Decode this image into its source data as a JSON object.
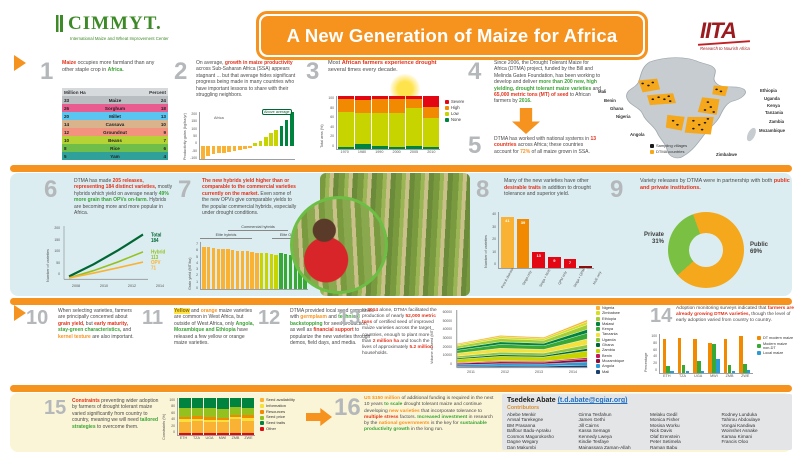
{
  "header": {
    "cimmyt_name": "CIMMYT.",
    "cimmyt_tagline": "International Maize and Wheat Improvement Center",
    "title": "A New Generation of Maize for Africa",
    "iita_name": "IITA",
    "iita_tagline": "Research to Nourish Africa"
  },
  "s1": {
    "num": "1",
    "p1": "Maize",
    "p2": "occupies more farmland than any other staple crop in",
    "p3": "Africa.",
    "table": {
      "type": "table",
      "header": [
        "Million Ha",
        "Percent"
      ],
      "rows": [
        {
          "crop": "Maize",
          "ha": "33",
          "pct": "24",
          "color": "#b9bec2"
        },
        {
          "crop": "Sorghum",
          "ha": "26",
          "pct": "18",
          "color": "#e85c8f"
        },
        {
          "crop": "Millet",
          "ha": "20",
          "pct": "13",
          "color": "#5bc5f2"
        },
        {
          "crop": "Cassava",
          "ha": "14",
          "pct": "10",
          "color": "#d9b38c"
        },
        {
          "crop": "Groundnut",
          "ha": "12",
          "pct": "9",
          "color": "#f2927f"
        },
        {
          "crop": "Beans",
          "ha": "10",
          "pct": "7",
          "color": "#b5d334"
        },
        {
          "crop": "Rice",
          "ha": "8",
          "pct": "6",
          "color": "#6fbe4a"
        },
        {
          "crop": "Yam",
          "ha": "5",
          "pct": "4",
          "color": "#2fa09a"
        }
      ]
    }
  },
  "s2": {
    "num": "2",
    "p1": "On average,",
    "p2": "growth in maize productivity",
    "p3": "across Sub-Saharan Africa (SSA) appears stagnant ... but that average hides significant progress being made in many countries who have important lessons to share with their struggling neighbors.",
    "chart": {
      "type": "bar",
      "ylabel": "Productivity gains (kg/ha/yr)",
      "values": [
        -70,
        -55,
        -45,
        -40,
        -35,
        -30,
        -25,
        -20,
        -15,
        -10,
        15,
        30,
        50,
        70,
        90,
        110,
        140,
        185
      ],
      "neg_color": "#f9b233",
      "pos_color": "#c8d400",
      "top_color": "#00833e",
      "top_count": 3,
      "yticks": [
        "200",
        "150",
        "100",
        "50",
        "0",
        "-50",
        "-100"
      ],
      "anno_africa": "Africa",
      "anno_above": "Above average"
    }
  },
  "s3": {
    "num": "3",
    "p1": "Most",
    "p2": "African farmers experience drought",
    "p3": "several times every decade.",
    "chart": {
      "type": "stacked",
      "max": 100,
      "ylabel": "Total area (%)",
      "categories": [
        "1970",
        "1980",
        "1990",
        "2000",
        "2005",
        "2010"
      ],
      "series": [
        {
          "name": "None",
          "color": "#00833e",
          "values": [
            4,
            10,
            6,
            4,
            6,
            3
          ]
        },
        {
          "name": "Low",
          "color": "#c8d400",
          "values": [
            66,
            58,
            62,
            64,
            72,
            55
          ]
        },
        {
          "name": "High",
          "color": "#f18a00",
          "values": [
            24,
            24,
            26,
            26,
            16,
            22
          ]
        },
        {
          "name": "Severe",
          "color": "#e30613",
          "values": [
            6,
            8,
            6,
            6,
            6,
            20
          ]
        }
      ],
      "legend": [
        {
          "label": "Severe",
          "color": "#e30613"
        },
        {
          "label": "High",
          "color": "#f18a00"
        },
        {
          "label": "Low",
          "color": "#c8d400"
        },
        {
          "label": "None",
          "color": "#00833e"
        }
      ],
      "yticks": [
        "100",
        "80",
        "60",
        "40",
        "20",
        "0"
      ]
    }
  },
  "s4": {
    "num": "4",
    "p1": "Since 2006, the Drought Tolerant Maize for Africa (DTMA) project, funded by the Bill and Melinda Gates Foundation, has been working to develop and deliver",
    "p2": "more than 200 new, high yielding, drought tolerant maize varieties",
    "p3": "and",
    "p4": "65,000 metric tons (MT) of seed",
    "p5": "to African farmers by",
    "p6": "2016."
  },
  "s5": {
    "num": "5",
    "p1": "DTMA has worked with national systems in",
    "p2": "13 countries",
    "p3": "across Africa; these countries account for",
    "p4": "72%",
    "p5": "of all maize grown in SSA."
  },
  "map": {
    "labels": [
      "Mali",
      "Benin",
      "Ghana",
      "Nigeria",
      "Angola",
      "Ethiopia",
      "Uganda",
      "Kenya",
      "Tanzania",
      "Zambia",
      "Mozambique",
      "Zimbabwe"
    ],
    "legend": [
      {
        "label": "Sampling villages",
        "color": "#1a1a1a"
      },
      {
        "label": "DTMA countries",
        "color": "#f5a81c"
      }
    ]
  },
  "s6": {
    "num": "6",
    "p1": "DTMA has made",
    "p2": "205 releases, representing 184 distinct varieties,",
    "p3": "mostly hybrids which yield on average nearly",
    "p4": "49% more grain than OPVs on-farm.",
    "p5": "Hybrids are becoming more and more popular in Africa.",
    "chart": {
      "type": "line",
      "ymax": 200,
      "ylabel": "Number of varieties",
      "x": [
        "2008",
        "2010",
        "2012",
        "2014"
      ],
      "yticks": [
        "200",
        "150",
        "100",
        "50",
        "0"
      ],
      "series": [
        {
          "name": "Total",
          "end": "184",
          "color": "#006633",
          "values": [
            12,
            62,
            120,
            184
          ]
        },
        {
          "name": "Hybrid",
          "end": "113",
          "color": "#95c11f",
          "values": [
            6,
            36,
            72,
            113
          ]
        },
        {
          "name": "OPV",
          "end": "71",
          "color": "#f9b233",
          "values": [
            6,
            26,
            48,
            71
          ]
        }
      ]
    }
  },
  "s7": {
    "num": "7",
    "p1": "The new hybrids yield higher than or comparable to the commercial varieties currently on the market.",
    "p2": "Even some of the new OPVs give comparable yields to the popular commercial hybrids, especially under drought conditions.",
    "chart": {
      "type": "bar",
      "max": 7,
      "ylabel": "Grain yield (MT/ha)",
      "values": [
        6.3,
        6.2,
        6.1,
        6.0,
        5.9,
        5.9,
        5.8,
        5.7,
        5.7,
        5.6,
        5.5,
        5.4,
        5.4,
        5.3,
        5.2,
        5.1,
        5.3,
        5.2,
        5.1,
        4.9,
        4.8,
        4.6
      ],
      "bar_colors": [
        "#f9b233",
        "#f9b233",
        "#f9b233",
        "#f9b233",
        "#f9b233",
        "#f9b233",
        "#f9b233",
        "#f9b233",
        "#f9b233",
        "#f9b233",
        "#f9b233",
        "#f9b233",
        "#c8d400",
        "#c8d400",
        "#c8d400",
        "#c8d400",
        "#39a935",
        "#39a935",
        "#39a935",
        "#39a935",
        "#39a935",
        "#39a935"
      ],
      "group_labels": [
        "Elite hybrids",
        "Commercial hybrids",
        "Elite OPVs"
      ],
      "yticks": [
        "7",
        "6",
        "5",
        "4",
        "3",
        "2",
        "1",
        "0"
      ]
    }
  },
  "s8": {
    "num": "8",
    "p1": "Many of the new varieties have other",
    "p2": "desirable traits",
    "p3": "in addition to drought tolerance and superior yield.",
    "chart": {
      "type": "bar",
      "max": 45,
      "ylabel": "Number of varieties",
      "show_values": true,
      "rotate": true,
      "values": [
        41,
        39,
        13,
        9,
        7,
        2
      ],
      "bar_colors": [
        "#f9b233",
        "#f18a00",
        "#e30613",
        "#e30613",
        "#e30613",
        "#8b0e0e"
      ],
      "categories": [
        "Pest & disease",
        "Striga only",
        "Striga + NUE",
        "QPM only",
        "Striga + QPM",
        "NUE only"
      ],
      "yticks": [
        "40",
        "30",
        "20",
        "10",
        "0"
      ]
    }
  },
  "s9": {
    "num": "9",
    "p1": "Variety releases by DTMA were in partnership with both",
    "p2": "public and private institutions.",
    "chart": {
      "type": "donut",
      "from": -20,
      "slices": [
        {
          "label": "Public",
          "pct": 69,
          "color": "#f5a81c"
        },
        {
          "label": "Private",
          "pct": 31,
          "color": "#7ac143"
        }
      ]
    },
    "private_label": "Private",
    "private_pct": "31%",
    "public_label": "Public",
    "public_pct": "69%"
  },
  "s10": {
    "num": "10",
    "p1": "When selecting varieties, farmers are principally concerned about",
    "p2": "grain yield,",
    "p3": "but",
    "p4": "early maturity,",
    "p5": "stay-green characteristics,",
    "p6": "and",
    "p7": "kernel texture",
    "p8": "are also important."
  },
  "s11": {
    "num": "11",
    "p1": "Yellow",
    "p2": "and",
    "p3": "orange",
    "p4": "maize varieties are common in West Africa, but outside of West Africa, only",
    "p5": "Angola, Mozambique and Ethiopia",
    "p6": "have released a few yellow or orange maize varieties."
  },
  "s12": {
    "num": "12",
    "p1": "DTMA provided local seed companies with",
    "p2": "germplasm",
    "p3": "and",
    "p4": "technical backstopping",
    "p5": "for seed production, as well as",
    "p6": "financial support",
    "p7": "to popularize the new varieties through demos, field days, and media."
  },
  "s13": {
    "num": "13",
    "p1": "In",
    "p2": "2014",
    "p3": "alone, DTMA facilitated the production of nearly",
    "p4": "52,000 metric tons",
    "p5": "of certified seed of improved maize varieties across the target countries, enough to plant more than",
    "p6": "2 million ha",
    "p7": "and touch the lives of approximately",
    "p8": "5.2 million",
    "p9": "households.",
    "chart": {
      "type": "area",
      "ymax": 60000,
      "ylabel": "Volume of seed (MT)",
      "x": [
        "2011",
        "2012",
        "2013",
        "2014"
      ],
      "yticks": [
        "60000",
        "50000",
        "40000",
        "30000",
        "20000",
        "10000",
        "0"
      ],
      "totals": [
        26000,
        35000,
        33000,
        52000
      ],
      "series": [
        {
          "name": "Mali",
          "color": "#1b3e6f",
          "values": [
            1300,
            1750,
            1650,
            2600
          ]
        },
        {
          "name": "Angola",
          "color": "#2a9bd5",
          "values": [
            1820,
            2450,
            2310,
            3640
          ]
        },
        {
          "name": "Mozambique",
          "color": "#8b0e3a",
          "values": [
            1560,
            2100,
            1980,
            3120
          ]
        },
        {
          "name": "Benin",
          "color": "#c2185b",
          "values": [
            780,
            1050,
            990,
            1560
          ]
        },
        {
          "name": "Zambia",
          "color": "#c8d400",
          "values": [
            3640,
            4900,
            4620,
            7280
          ]
        },
        {
          "name": "Ghana",
          "color": "#006633",
          "values": [
            1300,
            1750,
            1650,
            2600
          ]
        },
        {
          "name": "Uganda",
          "color": "#8dc63f",
          "values": [
            2080,
            2800,
            2640,
            4160
          ]
        },
        {
          "name": "Tanzania",
          "color": "#f5e03c",
          "values": [
            3120,
            4200,
            3960,
            6240
          ]
        },
        {
          "name": "Kenya",
          "color": "#39a935",
          "values": [
            3120,
            4200,
            3960,
            6240
          ]
        },
        {
          "name": "Malawi",
          "color": "#00833e",
          "values": [
            2080,
            2800,
            2640,
            4160
          ]
        },
        {
          "name": "Ethiopia",
          "color": "#a6ce39",
          "values": [
            2600,
            3500,
            3300,
            5200
          ]
        },
        {
          "name": "Zimbabwe",
          "color": "#d7df23",
          "values": [
            1560,
            2100,
            1980,
            3120
          ]
        },
        {
          "name": "Nigeria",
          "color": "#f9b233",
          "values": [
            1040,
            1400,
            1320,
            2080
          ]
        }
      ]
    }
  },
  "s14": {
    "num": "14",
    "p1": "Adoption monitoring surveys indicated that",
    "p2": "farmers are already growing DTMA varieties,",
    "p3": "though the level of early adoption varied from country to country.",
    "chart": {
      "type": "grouped",
      "max": 100,
      "ylabel": "Percentage",
      "categories": [
        "ETH",
        "TZA",
        "UGA",
        "MWI",
        "ZMB",
        "ZWE"
      ],
      "yticks": [
        "100",
        "80",
        "60",
        "40",
        "20",
        "0"
      ],
      "series": [
        {
          "name": "DT modern maize",
          "color": "#f18a00",
          "values": [
            88,
            90,
            86,
            78,
            88,
            94
          ]
        },
        {
          "name": "Modern maize non-DT",
          "color": "#39a935",
          "values": [
            18,
            20,
            30,
            74,
            20,
            22
          ]
        },
        {
          "name": "Local maize",
          "color": "#2a9bd5",
          "values": [
            4,
            6,
            5,
            35,
            6,
            8
          ]
        }
      ]
    }
  },
  "s15": {
    "num": "15",
    "p1": "Constraints",
    "p2": "preventing wider adoption by farmers of drought tolerant maize varied significantly from country to country, meaning we will need",
    "p3": "tailored strategies",
    "p4": "to overcome them.",
    "chart": {
      "type": "stacked",
      "max": 100,
      "ylabel": "Constraints (%)",
      "categories": [
        "ETH",
        "TZA",
        "UGA",
        "MWI",
        "ZMB",
        "ZWE"
      ],
      "yticks": [
        "100",
        "80",
        "60",
        "40",
        "20",
        "0"
      ],
      "series": [
        {
          "name": "Other",
          "color": "#e30613",
          "values": [
            6,
            5,
            6,
            5,
            5,
            6
          ]
        },
        {
          "name": "Seed availability",
          "color": "#f9b233",
          "values": [
            30,
            34,
            28,
            30,
            38,
            33
          ]
        },
        {
          "name": "Information",
          "color": "#f5e03c",
          "values": [
            6,
            5,
            7,
            5,
            5,
            6
          ]
        },
        {
          "name": "Resources",
          "color": "#f18a00",
          "values": [
            8,
            8,
            9,
            7,
            7,
            8
          ]
        },
        {
          "name": "Seed price",
          "color": "#95c11f",
          "values": [
            22,
            20,
            22,
            24,
            20,
            21
          ]
        },
        {
          "name": "Seed traits",
          "color": "#00833e",
          "values": [
            28,
            28,
            28,
            29,
            25,
            26
          ]
        }
      ],
      "legend": [
        {
          "label": "Seed availability",
          "color": "#f9b233"
        },
        {
          "label": "Information",
          "color": "#f5e03c"
        },
        {
          "label": "Resources",
          "color": "#f18a00"
        },
        {
          "label": "Seed price",
          "color": "#95c11f"
        },
        {
          "label": "Seed traits",
          "color": "#00833e"
        },
        {
          "label": "Other",
          "color": "#e30613"
        }
      ]
    }
  },
  "s16": {
    "num": "16",
    "p1": "US $150 million",
    "p2": "of additional funding is required in the next 10 years",
    "p3": "to scale",
    "p4": "drought tolerant maize and continue developing",
    "p5": "new varieties",
    "p6": "that incorporate tolerance to",
    "p7": "multiple stress",
    "p8": "factors.",
    "p9": "Increased investment",
    "p10": "in research by the",
    "p11": "national governments",
    "p12": "is the key for",
    "p13": "sustainable productivity growth",
    "p14": "in the long run."
  },
  "contributors": {
    "lead_name": "Tsedeke Abate",
    "lead_email": "(t.d.abate@cgiar.org)",
    "heading": "Contributors",
    "col1": [
      "Abebe Menkir",
      "Amsal Tarekegne",
      "BM Prasanna",
      "Baffour Badu-Apraku",
      "Cosmos Magorokosho",
      "Dagne Wegary",
      "Dan Makumbi"
    ],
    "col2": [
      "Girma Tesfahun",
      "James Gethi",
      "Jill Cairns",
      "Kassa Semagn",
      "Kennedy Lweya",
      "Kindie Tesfaye",
      "Mainassara Zaman-Allah"
    ],
    "col3": [
      "Melaku Gedil",
      "Monica Fisher",
      "Mosisa Worku",
      "Nick Davis",
      "Olaf Erenstein",
      "Peter Setimela",
      "Raman Babu"
    ],
    "col4": [
      "Rodney Lunduka",
      "Tahirou Abdoulaye",
      "Vongai Kandiwa",
      "Woinshet Asnake",
      "Kamau Kimani",
      "Francis Oloo"
    ]
  }
}
